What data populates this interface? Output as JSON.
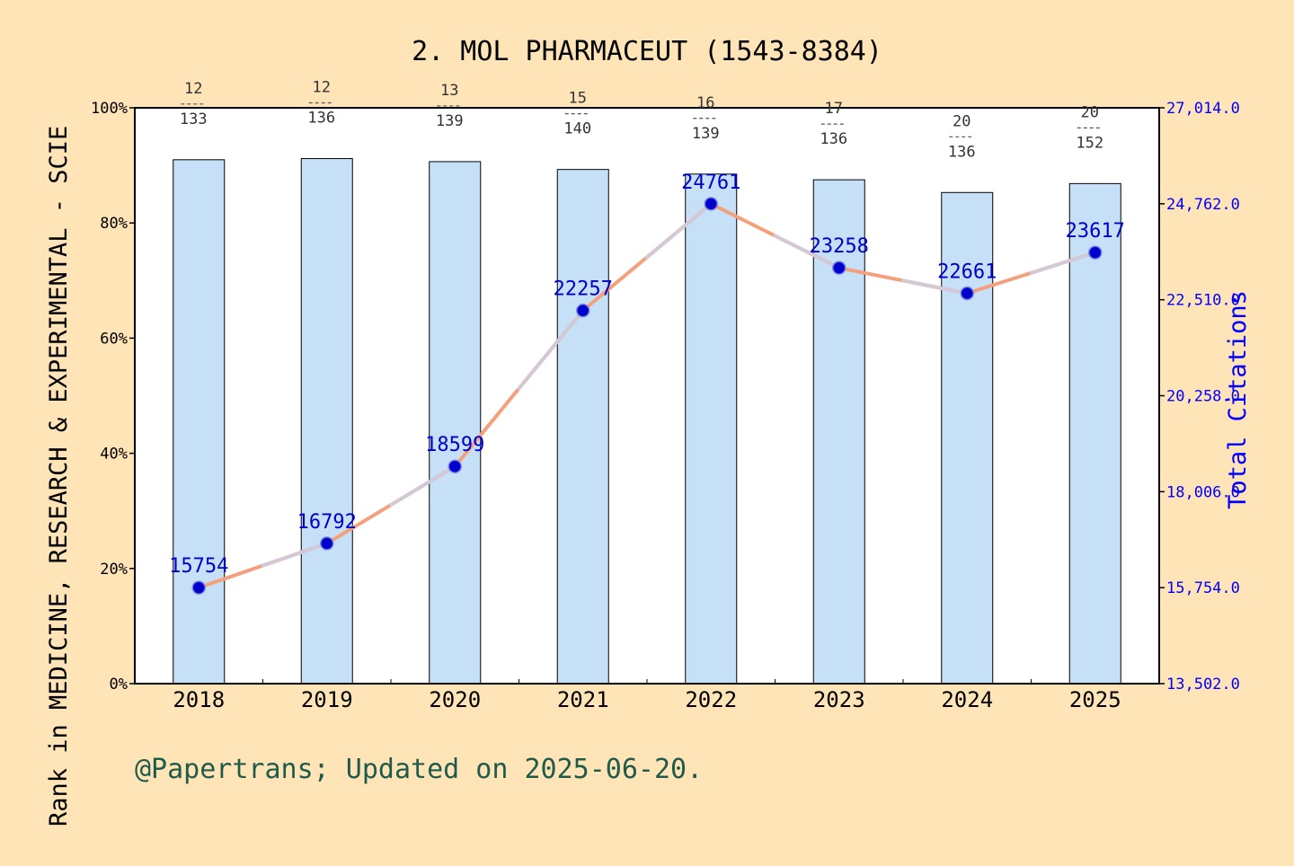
{
  "chart_data": {
    "type": "bar",
    "title": "2. MOL PHARMACEUT (1543-8384)",
    "categories": [
      "2018",
      "2019",
      "2020",
      "2021",
      "2022",
      "2023",
      "2024",
      "2025"
    ],
    "ylabel_left": "Rank in MEDICINE, RESEARCH & EXPERIMENTAL - SCIE",
    "ylabel_right": "Total Citations",
    "ylim_left": [
      0,
      100
    ],
    "yticks_left": [
      "0%",
      "20%",
      "40%",
      "60%",
      "80%",
      "100%"
    ],
    "ylim_right": [
      13502,
      27014
    ],
    "yticks_right": [
      "13,502.0",
      "15,754.0",
      "18,006.0",
      "20,258.0",
      "22,510.0",
      "24,762.0",
      "27,014.0"
    ],
    "grid": false,
    "series": [
      {
        "type": "bar",
        "values": [
          90.98,
          91.18,
          90.65,
          89.29,
          88.49,
          87.5,
          85.29,
          86.84
        ],
        "rank": [
          12,
          12,
          13,
          15,
          16,
          17,
          20,
          20
        ],
        "total": [
          133,
          136,
          139,
          140,
          139,
          136,
          136,
          152
        ],
        "color": "#c6e0f7"
      },
      {
        "type": "line",
        "values": [
          15754,
          16792,
          18599,
          22257,
          24761,
          23258,
          22661,
          23617
        ],
        "labels": [
          "15754",
          "16792",
          "18599",
          "22257",
          "24761",
          "23258",
          "22661",
          "23617"
        ],
        "line_color": "#f4a07c",
        "marker_color": "#0000cc"
      }
    ],
    "footer": "@Papertrans; Updated on 2025-06-20."
  }
}
